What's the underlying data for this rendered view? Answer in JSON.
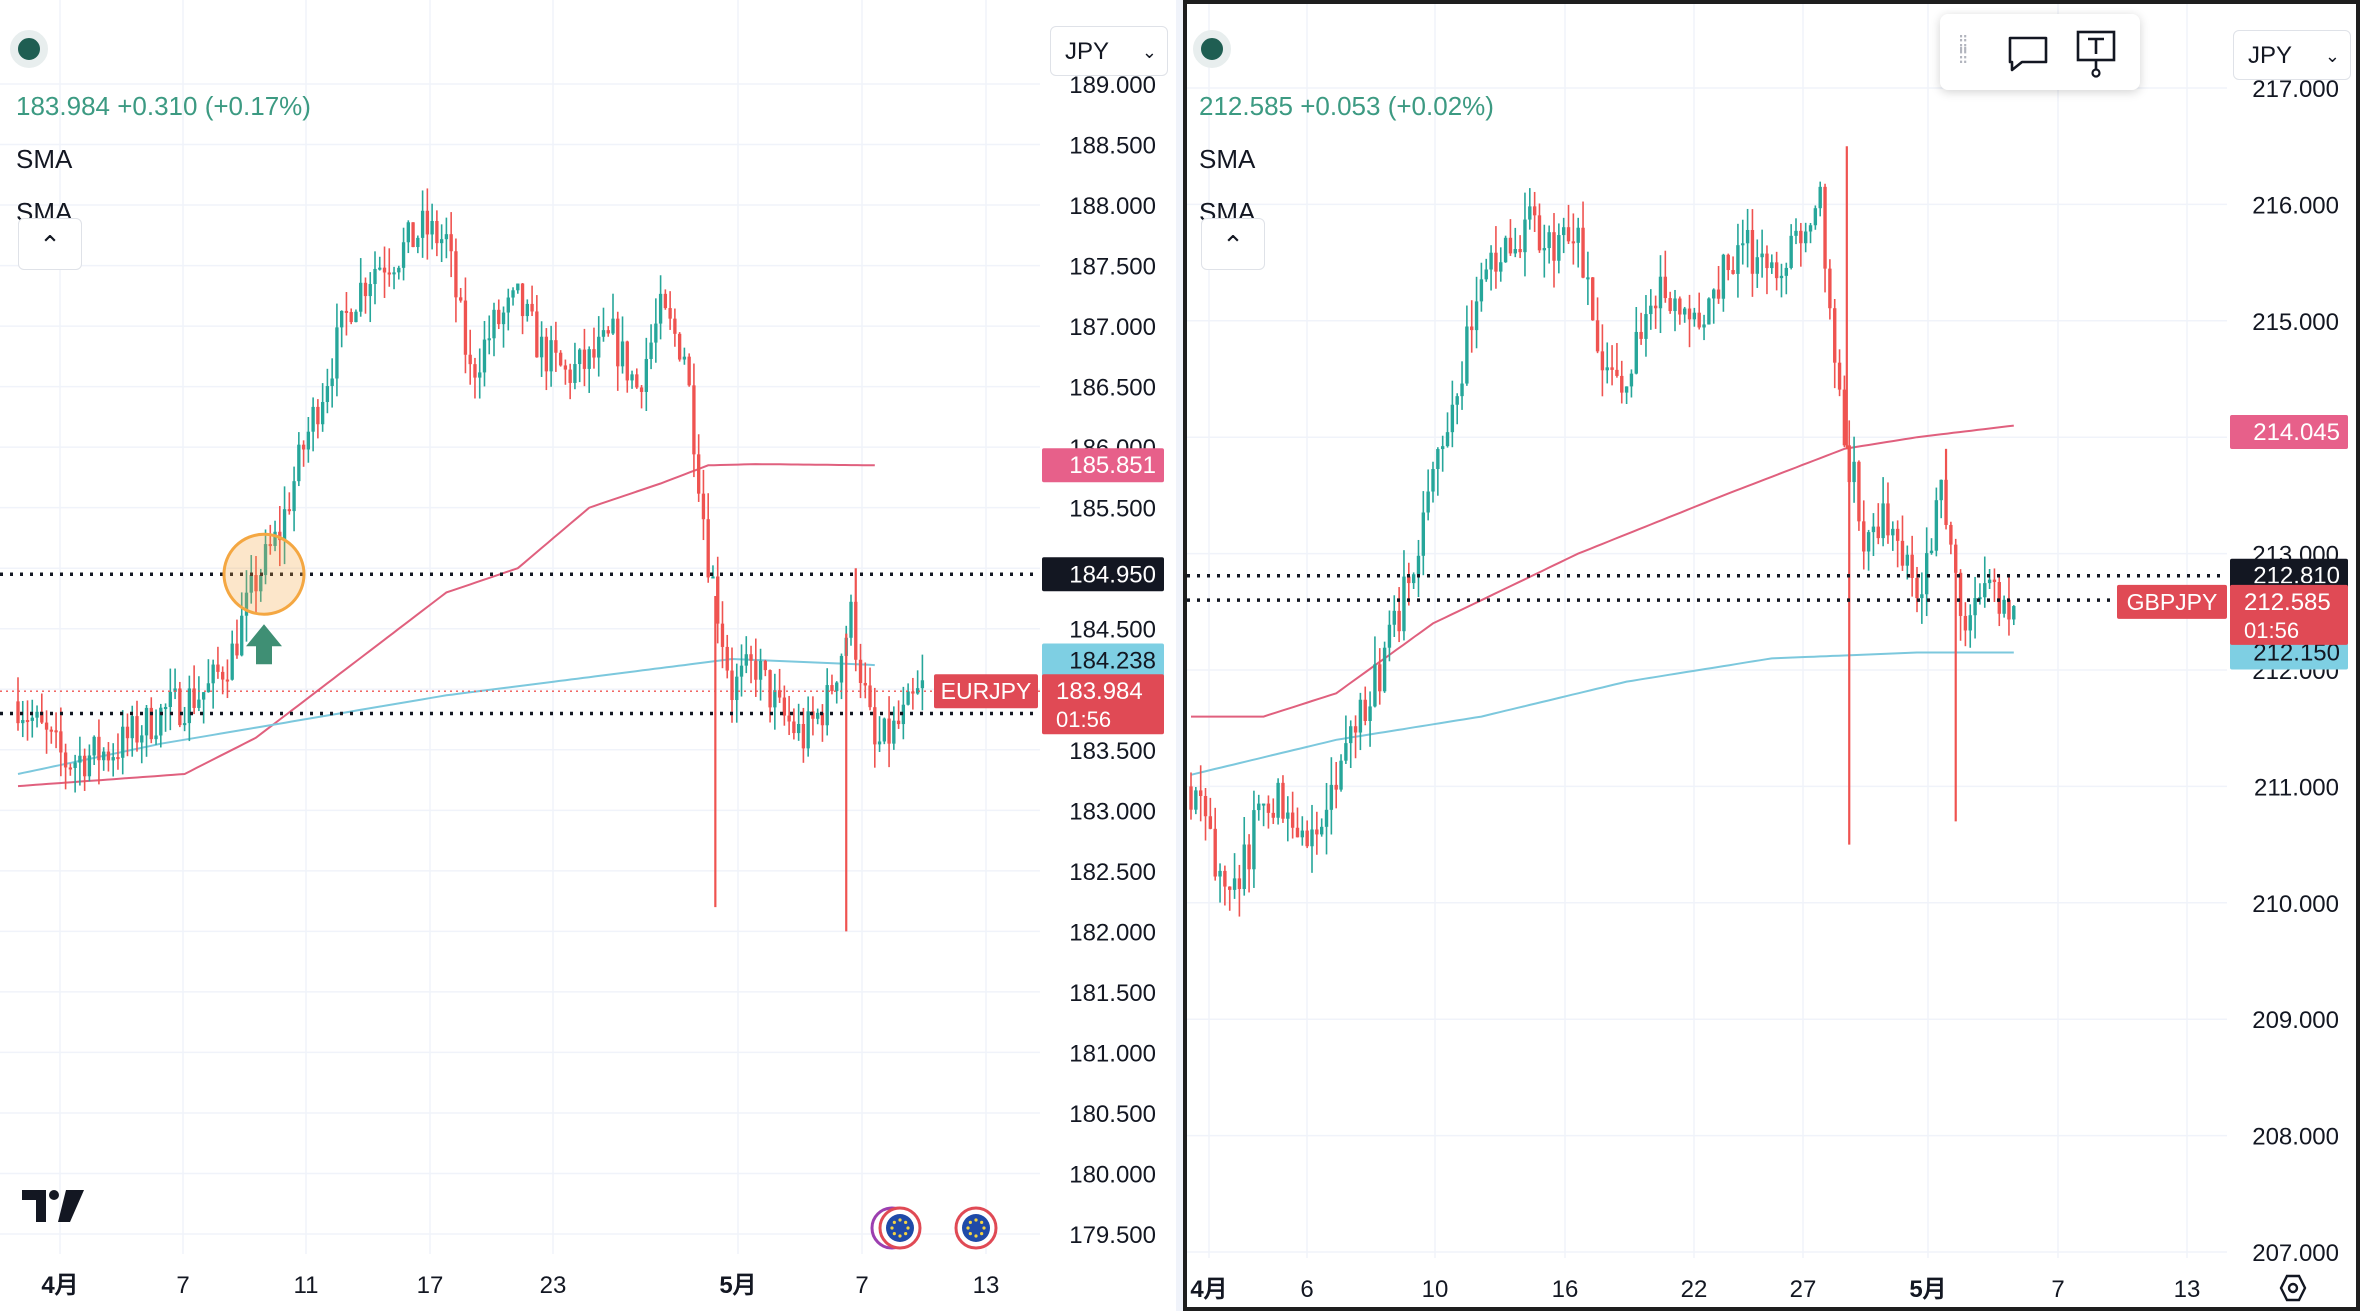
{
  "left_chart": {
    "currency": "JPY",
    "last": "183.984",
    "change": "+0.310",
    "change_pct": "(+0.17%)",
    "indicators": [
      "SMA",
      "SMA"
    ],
    "symbol": "EURJPY",
    "price_label": "183.984",
    "countdown": "01:56",
    "ma_labels": {
      "red": "185.851",
      "blue": "184.238"
    },
    "line_labels": {
      "upper": "184.950",
      "lower": "183.800"
    },
    "y_ticks": [
      "189.000",
      "188.500",
      "188.000",
      "187.500",
      "187.000",
      "186.500",
      "186.000",
      "185.500",
      "185.000",
      "184.500",
      "184.000",
      "183.500",
      "183.000",
      "182.500",
      "182.000",
      "181.500",
      "181.000",
      "180.500",
      "180.000",
      "179.500"
    ],
    "x_ticks": [
      "4月",
      "7",
      "11",
      "17",
      "23",
      "5月",
      "7",
      "13"
    ]
  },
  "right_chart": {
    "currency": "JPY",
    "last": "212.585",
    "change": "+0.053",
    "change_pct": "(+0.02%)",
    "indicators": [
      "SMA",
      "SMA"
    ],
    "symbol": "GBPJPY",
    "price_label": "212.585",
    "countdown": "01:56",
    "ma_labels": {
      "red": "214.045",
      "blue": "212.150"
    },
    "line_labels": {
      "upper": "212.810",
      "lower": "212.600"
    },
    "y_ticks": [
      "217.000",
      "216.000",
      "215.000",
      "214.000",
      "213.000",
      "212.000",
      "211.000",
      "210.000",
      "209.000",
      "208.000",
      "207.000"
    ],
    "x_ticks": [
      "4月",
      "6",
      "10",
      "16",
      "22",
      "27",
      "5月",
      "7",
      "13"
    ]
  },
  "colors": {
    "up": "#26a69a",
    "down": "#ef5350",
    "sma_long": "#e0607e",
    "sma_short": "#7cc8dd",
    "price_label": "#e04a55",
    "hline_label": "#131722",
    "blue_label": "#7ecfe3",
    "pink_label": "#e7608a",
    "highlight": "#f4a742",
    "arrow": "#3f8f74"
  },
  "icons": [
    "comment-icon",
    "text-tool-icon",
    "settings-icon",
    "tradingview-logo-icon",
    "eu-flag-icon"
  ],
  "chart_data": [
    {
      "type": "candlestick",
      "symbol": "EURJPY",
      "ylim": [
        179.5,
        189.0
      ],
      "x_ticks": [
        "4月",
        "7",
        "11",
        "17",
        "23",
        "5月",
        "7",
        "13"
      ],
      "path": [
        [
          0,
          183.9
        ],
        [
          2,
          183.4
        ],
        [
          4,
          183.5
        ],
        [
          6,
          183.8
        ],
        [
          8,
          184.0
        ],
        [
          9,
          184.3
        ],
        [
          10,
          184.9
        ],
        [
          11,
          185.3
        ],
        [
          12,
          186.0
        ],
        [
          13,
          186.6
        ],
        [
          14,
          187.2
        ],
        [
          15,
          187.5
        ],
        [
          16,
          187.6
        ],
        [
          17,
          187.8
        ],
        [
          18,
          187.7
        ],
        [
          19,
          186.6
        ],
        [
          20,
          187.0
        ],
        [
          21,
          187.2
        ],
        [
          22,
          186.8
        ],
        [
          23,
          186.6
        ],
        [
          24,
          186.7
        ],
        [
          25,
          186.9
        ],
        [
          26,
          186.5
        ],
        [
          27,
          187.1
        ],
        [
          28,
          186.8
        ],
        [
          29,
          185.1
        ],
        [
          30,
          184.0
        ],
        [
          31,
          184.2
        ],
        [
          32,
          183.8
        ],
        [
          33,
          183.6
        ],
        [
          34,
          183.9
        ],
        [
          35,
          184.6
        ],
        [
          36,
          183.5
        ],
        [
          37,
          183.7
        ],
        [
          38,
          184.0
        ]
      ],
      "spikes": [
        [
          29.3,
          182.2
        ],
        [
          34.8,
          182.0
        ],
        [
          35.2,
          185.0
        ]
      ],
      "sma_long": [
        [
          0,
          183.2
        ],
        [
          7,
          183.3
        ],
        [
          10,
          183.6
        ],
        [
          14,
          184.2
        ],
        [
          18,
          184.8
        ],
        [
          21,
          185.0
        ],
        [
          24,
          185.5
        ],
        [
          27,
          185.7
        ],
        [
          29,
          185.85
        ],
        [
          31,
          185.86
        ],
        [
          36,
          185.85
        ]
      ],
      "sma_short": [
        [
          0,
          183.3
        ],
        [
          6,
          183.55
        ],
        [
          12,
          183.75
        ],
        [
          18,
          183.95
        ],
        [
          24,
          184.1
        ],
        [
          30,
          184.25
        ],
        [
          36,
          184.2
        ]
      ],
      "horizontal_lines": [
        184.95,
        183.8
      ],
      "last_price": 183.984,
      "highlight_bar": 10
    },
    {
      "type": "candlestick",
      "symbol": "GBPJPY",
      "ylim": [
        207.0,
        217.0
      ],
      "x_ticks": [
        "4月",
        "6",
        "10",
        "16",
        "22",
        "27",
        "5月",
        "7",
        "13"
      ],
      "path": [
        [
          0,
          211.0
        ],
        [
          1,
          210.4
        ],
        [
          2,
          210.2
        ],
        [
          3,
          210.9
        ],
        [
          4,
          210.9
        ],
        [
          5,
          210.5
        ],
        [
          6,
          211.0
        ],
        [
          7,
          211.6
        ],
        [
          8,
          212.1
        ],
        [
          9,
          212.8
        ],
        [
          10,
          213.6
        ],
        [
          11,
          214.5
        ],
        [
          12,
          215.3
        ],
        [
          13,
          215.6
        ],
        [
          14,
          215.8
        ],
        [
          15,
          215.6
        ],
        [
          16,
          215.7
        ],
        [
          17,
          214.4
        ],
        [
          18,
          214.6
        ],
        [
          19,
          215.1
        ],
        [
          20,
          215.3
        ],
        [
          21,
          215.0
        ],
        [
          22,
          215.4
        ],
        [
          23,
          215.6
        ],
        [
          24,
          215.4
        ],
        [
          25,
          215.8
        ],
        [
          26,
          216.0
        ],
        [
          27,
          214.0
        ],
        [
          28,
          213.0
        ],
        [
          29,
          213.4
        ],
        [
          30,
          212.6
        ],
        [
          31,
          213.6
        ],
        [
          32,
          212.4
        ],
        [
          33,
          212.7
        ],
        [
          34,
          212.6
        ]
      ],
      "spikes": [
        [
          27.2,
          210.5
        ],
        [
          27.1,
          216.5
        ],
        [
          31.2,
          213.9
        ],
        [
          31.6,
          210.7
        ]
      ],
      "sma_long": [
        [
          0,
          211.6
        ],
        [
          3,
          211.6
        ],
        [
          6,
          211.8
        ],
        [
          10,
          212.4
        ],
        [
          16,
          213.0
        ],
        [
          22,
          213.5
        ],
        [
          27,
          213.9
        ],
        [
          30,
          214.0
        ],
        [
          34,
          214.1
        ]
      ],
      "sma_short": [
        [
          0,
          211.1
        ],
        [
          6,
          211.4
        ],
        [
          12,
          211.6
        ],
        [
          18,
          211.9
        ],
        [
          24,
          212.1
        ],
        [
          30,
          212.15
        ],
        [
          34,
          212.15
        ]
      ],
      "horizontal_lines": [
        212.81,
        212.6
      ],
      "last_price": 212.585
    }
  ]
}
